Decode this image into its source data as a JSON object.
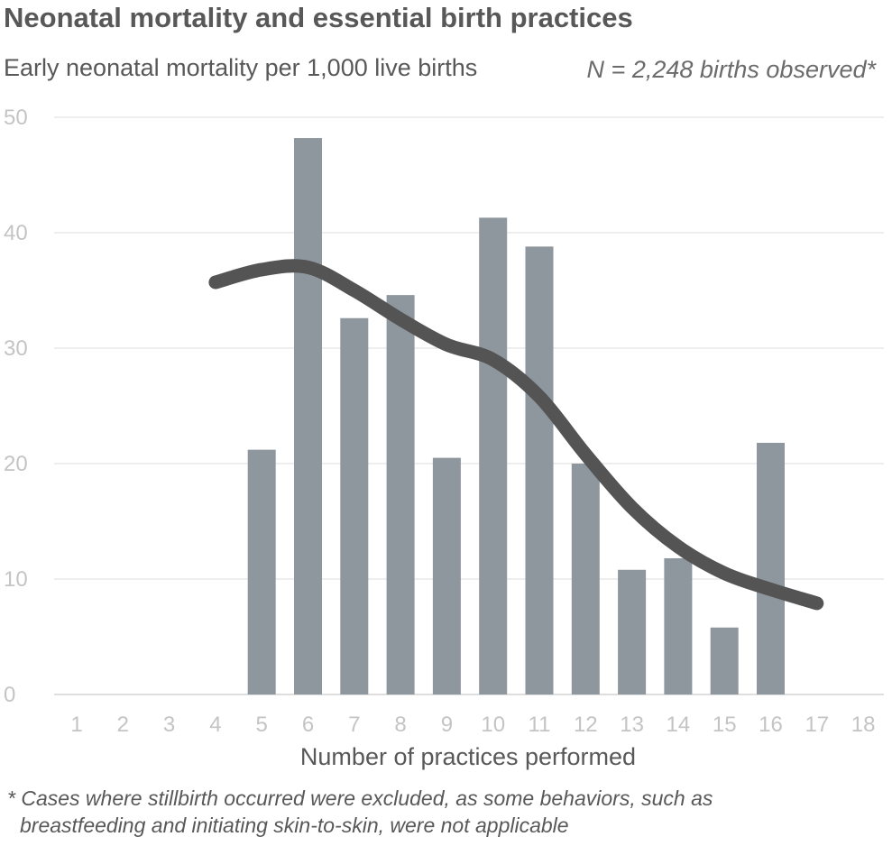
{
  "title": "Neonatal mortality and essential birth practices",
  "subtitle": "Early neonatal mortality per 1,000 live births",
  "note": "N = 2,248 births observed*",
  "footnote": [
    "* Cases where stillbirth occurred were excluded, as some behaviors, such as",
    "breastfeeding and initiating skin-to-skin, were not applicable"
  ],
  "chart_data": {
    "type": "bar",
    "xlabel": "Number of practices performed",
    "ylabel": "",
    "ylim": [
      0,
      50
    ],
    "yticks": [
      0,
      10,
      20,
      30,
      40,
      50
    ],
    "grid": true,
    "categories": [
      "1",
      "2",
      "3",
      "4",
      "5",
      "6",
      "7",
      "8",
      "9",
      "10",
      "11",
      "12",
      "13",
      "14",
      "15",
      "16",
      "17",
      "18"
    ],
    "series": [
      {
        "kind": "bar",
        "values": [
          null,
          null,
          null,
          null,
          21.2,
          48.2,
          32.6,
          34.6,
          20.5,
          41.3,
          38.8,
          20.0,
          10.8,
          11.8,
          5.8,
          21.8,
          null,
          null
        ],
        "color": "#8f979e"
      },
      {
        "kind": "line",
        "x": [
          "4",
          "5",
          "6",
          "7",
          "8",
          "9",
          "10",
          "11",
          "12",
          "13",
          "14",
          "15",
          "16",
          "17"
        ],
        "values": [
          35.7,
          36.8,
          37.0,
          35.0,
          32.5,
          30.3,
          29.0,
          25.8,
          20.8,
          16.2,
          12.8,
          10.5,
          9.1,
          7.9
        ],
        "color": "#545454"
      }
    ]
  }
}
